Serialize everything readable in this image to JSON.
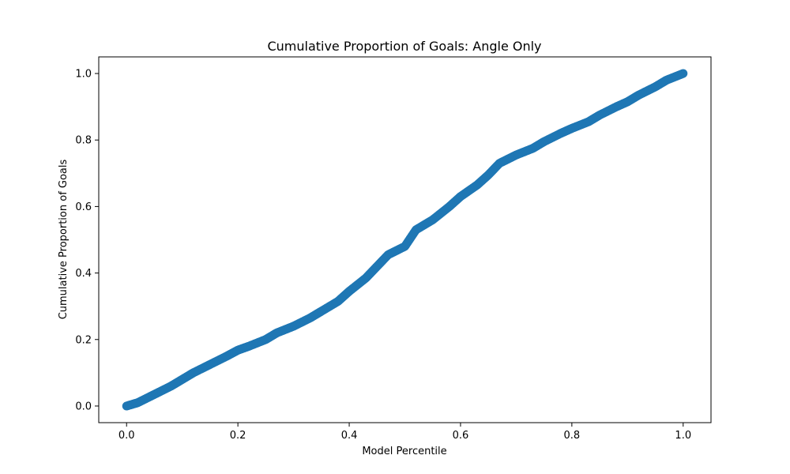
{
  "chart_data": {
    "type": "scatter",
    "title": "Cumulative Proportion of Goals: Angle Only",
    "xlabel": "Model Percentile",
    "ylabel": "Cumulative Proportion of Goals",
    "xlim": [
      -0.05,
      1.05
    ],
    "ylim": [
      -0.05,
      1.05
    ],
    "xticks": [
      "0.0",
      "0.2",
      "0.4",
      "0.6",
      "0.8",
      "1.0"
    ],
    "yticks": [
      "0.0",
      "0.2",
      "0.4",
      "0.6",
      "0.8",
      "1.0"
    ],
    "grid": false,
    "marker_color": "#1f77b4",
    "series": [
      {
        "x": [
          0.0,
          0.02,
          0.05,
          0.08,
          0.1,
          0.12,
          0.15,
          0.18,
          0.2,
          0.22,
          0.25,
          0.27,
          0.3,
          0.33,
          0.35,
          0.38,
          0.4,
          0.43,
          0.45,
          0.47,
          0.5,
          0.52,
          0.55,
          0.58,
          0.6,
          0.63,
          0.65,
          0.67,
          0.7,
          0.73,
          0.75,
          0.78,
          0.8,
          0.83,
          0.85,
          0.88,
          0.9,
          0.92,
          0.95,
          0.97,
          1.0
        ],
        "y": [
          0.0,
          0.01,
          0.035,
          0.06,
          0.08,
          0.1,
          0.125,
          0.15,
          0.168,
          0.18,
          0.2,
          0.22,
          0.24,
          0.265,
          0.285,
          0.315,
          0.345,
          0.385,
          0.42,
          0.455,
          0.48,
          0.53,
          0.56,
          0.6,
          0.63,
          0.665,
          0.695,
          0.73,
          0.755,
          0.775,
          0.795,
          0.82,
          0.835,
          0.855,
          0.875,
          0.9,
          0.915,
          0.935,
          0.96,
          0.98,
          1.0
        ]
      }
    ]
  }
}
